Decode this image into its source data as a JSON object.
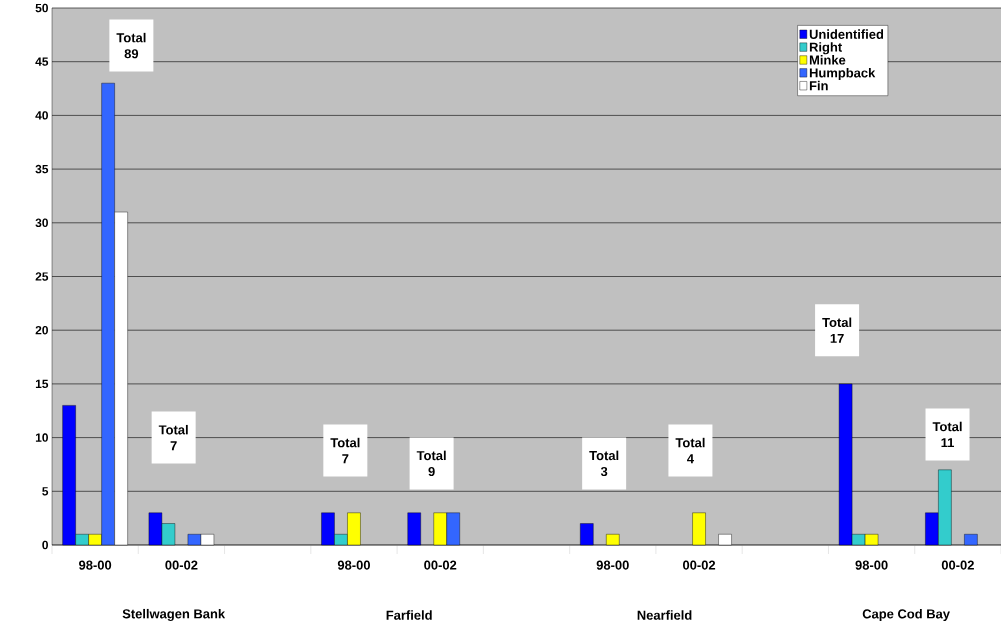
{
  "chart_data": {
    "type": "bar",
    "categories": [
      "98-00",
      "00-02",
      null,
      "98-00",
      "00-02",
      null,
      "98-00",
      "00-02",
      null,
      "98-00",
      "00-02"
    ],
    "series": [
      {
        "name": "Unidentified",
        "color": "#0000ff",
        "values": [
          13,
          3,
          null,
          3,
          3,
          null,
          2,
          0,
          null,
          15,
          3
        ]
      },
      {
        "name": "Right",
        "color": "#33cccc",
        "values": [
          1,
          2,
          null,
          1,
          0,
          null,
          0,
          0,
          null,
          1,
          7
        ]
      },
      {
        "name": "Minke",
        "color": "#ffff00",
        "values": [
          1,
          0,
          null,
          3,
          3,
          null,
          1,
          3,
          null,
          1,
          0
        ]
      },
      {
        "name": "Humpback",
        "color": "#3366ff",
        "values": [
          43,
          1,
          null,
          0,
          3,
          null,
          0,
          0,
          null,
          0,
          1
        ]
      },
      {
        "name": "Fin",
        "color": "#ffffff",
        "values": [
          31,
          1,
          null,
          0,
          0,
          null,
          0,
          1,
          null,
          0,
          0
        ]
      }
    ],
    "annotations": [
      "Stellwagen Bank",
      "Farfield",
      "Nearfield",
      "Cape Cod Bay",
      "Total 89",
      "Total 7",
      "Total 7",
      "Total 9",
      "Total 3",
      "Total 4",
      "Total 17",
      "Total 11"
    ],
    "ylim": [
      0,
      50
    ],
    "yticks": [
      0,
      5,
      10,
      15,
      20,
      25,
      30,
      35,
      40,
      45,
      50
    ],
    "grid": "y",
    "legend": "top right"
  }
}
